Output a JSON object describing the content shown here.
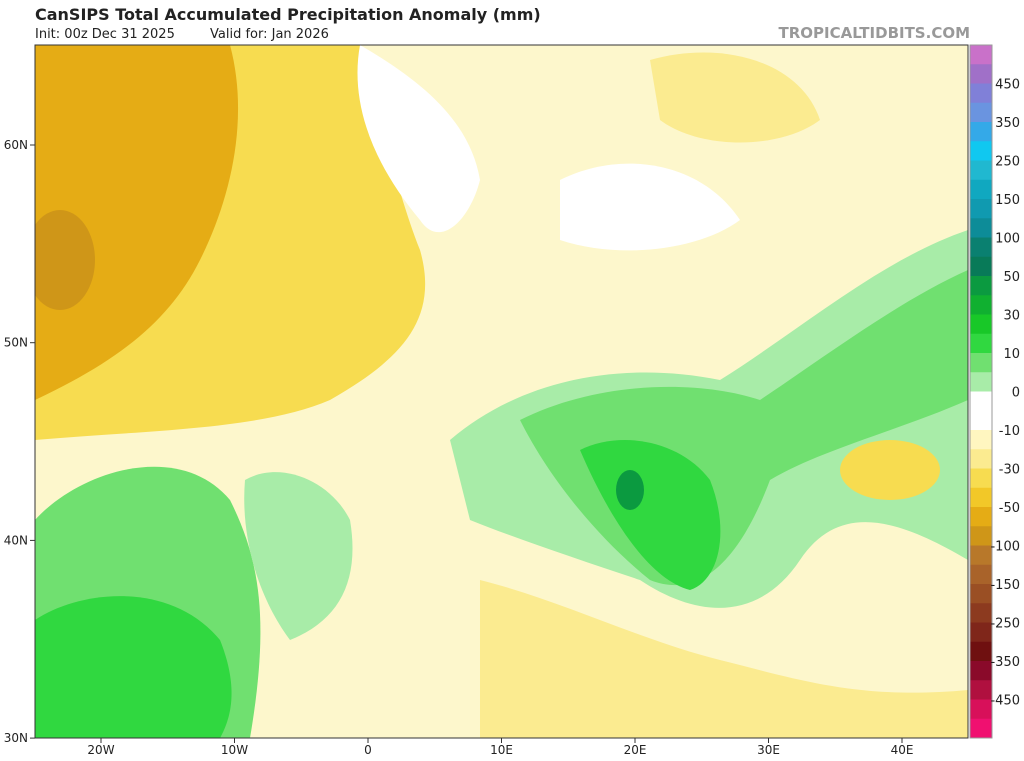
{
  "header": {
    "title": "CanSIPS Total Accumulated Precipitation Anomaly (mm)",
    "init": "Init: 00z Dec 31 2025",
    "valid": "Valid for: Jan 2026",
    "site": "TROPICALTIDBITS.COM"
  },
  "map": {
    "lat_labels": [
      "60N",
      "50N",
      "40N",
      "30N"
    ],
    "lon_labels": [
      "20W",
      "10W",
      "0",
      "10E",
      "20E",
      "30E",
      "40E"
    ]
  },
  "colorbar": {
    "labels": [
      "450",
      "350",
      "250",
      "150",
      "100",
      "50",
      "30",
      "10",
      "0",
      "-10",
      "-30",
      "-50",
      "-100",
      "-150",
      "-250",
      "-350",
      "-450"
    ],
    "colors": [
      "#c971c9",
      "#a070c8",
      "#8080d8",
      "#6a94e0",
      "#34a9e8",
      "#10c8f0",
      "#20b8d0",
      "#10a8c0",
      "#109ab0",
      "#0d8c98",
      "#0a8070",
      "#087a58",
      "#0b9a40",
      "#10b030",
      "#18c828",
      "#30d840",
      "#70e070",
      "#a8eca8",
      "#ffffff",
      "#ffffff",
      "#fff6c0",
      "#fbeb90",
      "#f7dc50",
      "#f2c828",
      "#e5ac15",
      "#cf9618",
      "#b8782a",
      "#a9632a",
      "#9a4f24",
      "#8c3a1f",
      "#7f261a",
      "#6f1010",
      "#8a0a2a",
      "#b0103f",
      "#d8105a",
      "#f01070"
    ]
  }
}
